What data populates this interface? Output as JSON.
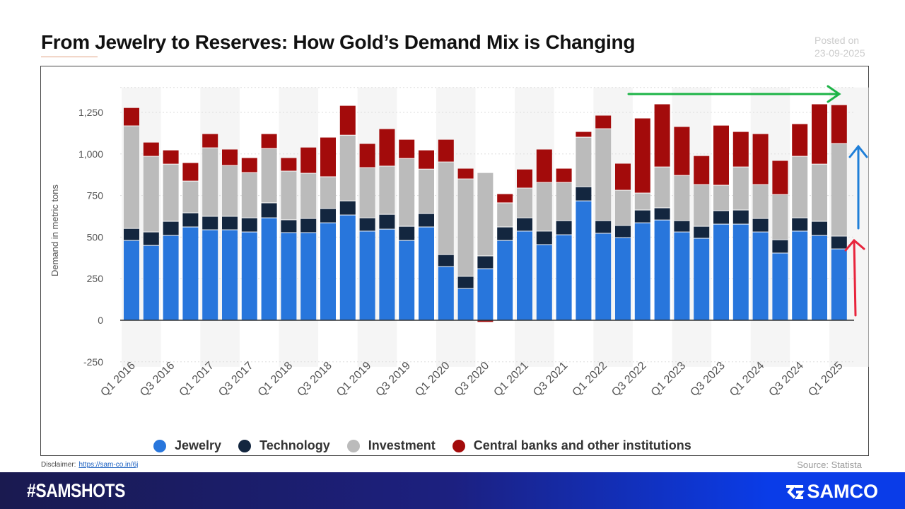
{
  "header": {
    "title": "From Jewelry to Reserves: How Gold’s Demand Mix is Changing",
    "posted_label": "Posted on",
    "posted_date": "23-09-2025"
  },
  "chart_data": {
    "type": "bar",
    "stacked": true,
    "ylabel": "Demand in metric tons",
    "ylim": [
      -250,
      1400
    ],
    "yticks": [
      -250,
      0,
      250,
      500,
      750,
      "1,000",
      "1,250"
    ],
    "ytick_values": [
      -250,
      0,
      250,
      500,
      750,
      1000,
      1250
    ],
    "grid": true,
    "legend_position": "bottom",
    "categories": [
      "Q1 2016",
      "Q2 2016",
      "Q3 2016",
      "Q4 2016",
      "Q1 2017",
      "Q2 2017",
      "Q3 2017",
      "Q4 2017",
      "Q1 2018",
      "Q2 2018",
      "Q3 2018",
      "Q4 2018",
      "Q1 2019",
      "Q2 2019",
      "Q3 2019",
      "Q4 2019",
      "Q1 2020",
      "Q2 2020",
      "Q3 2020",
      "Q4 2020",
      "Q1 2021",
      "Q2 2021",
      "Q3 2021",
      "Q4 2021",
      "Q1 2022",
      "Q2 2022",
      "Q3 2022",
      "Q4 2022",
      "Q1 2023",
      "Q2 2023",
      "Q3 2023",
      "Q4 2023",
      "Q1 2024",
      "Q2 2024",
      "Q3 2024",
      "Q4 2024",
      "Q1 2025"
    ],
    "xtick_labels": [
      "Q1 2016",
      "Q3 2016",
      "Q1 2017",
      "Q3 2017",
      "Q1 2018",
      "Q3 2018",
      "Q1 2019",
      "Q3 2019",
      "Q1 2020",
      "Q3 2020",
      "Q1 2021",
      "Q3 2021",
      "Q1 2022",
      "Q3 2022",
      "Q1 2023",
      "Q3 2023",
      "Q1 2024",
      "Q3 2024",
      "Q1 2025"
    ],
    "series": [
      {
        "name": "Jewelry",
        "color": "#2876dc",
        "values": [
          480,
          450,
          510,
          561,
          544,
          544,
          531,
          616,
          527,
          527,
          586,
          633,
          536,
          548,
          480,
          561,
          323,
          191,
          310,
          480,
          536,
          455,
          514,
          718,
          523,
          497,
          586,
          603,
          531,
          493,
          578,
          578,
          531,
          404,
          536,
          510,
          429
        ]
      },
      {
        "name": "Technology",
        "color": "#13263f",
        "values": [
          72,
          81,
          85,
          85,
          81,
          81,
          85,
          90,
          77,
          85,
          86,
          85,
          80,
          89,
          85,
          81,
          72,
          73,
          77,
          81,
          80,
          81,
          85,
          85,
          76,
          73,
          77,
          73,
          68,
          72,
          81,
          85,
          81,
          80,
          80,
          85,
          77
        ]
      },
      {
        "name": "Investment",
        "color": "#bbbbbb",
        "values": [
          617,
          455,
          344,
          191,
          412,
          306,
          272,
          327,
          293,
          272,
          191,
          395,
          302,
          290,
          408,
          267,
          557,
          586,
          501,
          145,
          179,
          293,
          230,
          298,
          553,
          212,
          102,
          246,
          272,
          251,
          153,
          259,
          204,
          272,
          370,
          344,
          557
        ]
      },
      {
        "name": "Central banks and other institutions",
        "color": "#a30b0b",
        "values": [
          110,
          85,
          85,
          111,
          85,
          98,
          90,
          89,
          81,
          157,
          238,
          179,
          145,
          225,
          115,
          115,
          136,
          64,
          -10,
          55,
          114,
          200,
          85,
          34,
          81,
          162,
          451,
          379,
          294,
          174,
          361,
          213,
          306,
          205,
          196,
          362,
          233
        ]
      }
    ]
  },
  "annotations": {
    "green_arrow_color": "#1db447",
    "blue_arrow_color": "#1f7fd8",
    "red_arrow_color": "#e8243c"
  },
  "footer": {
    "disclaimer_label": "Disclaimer:",
    "disclaimer_link": "https://sam-co.in/6j",
    "source": "Source: Statista",
    "hashtag": "#SAMSHOTS",
    "brand": "SAMCO"
  }
}
